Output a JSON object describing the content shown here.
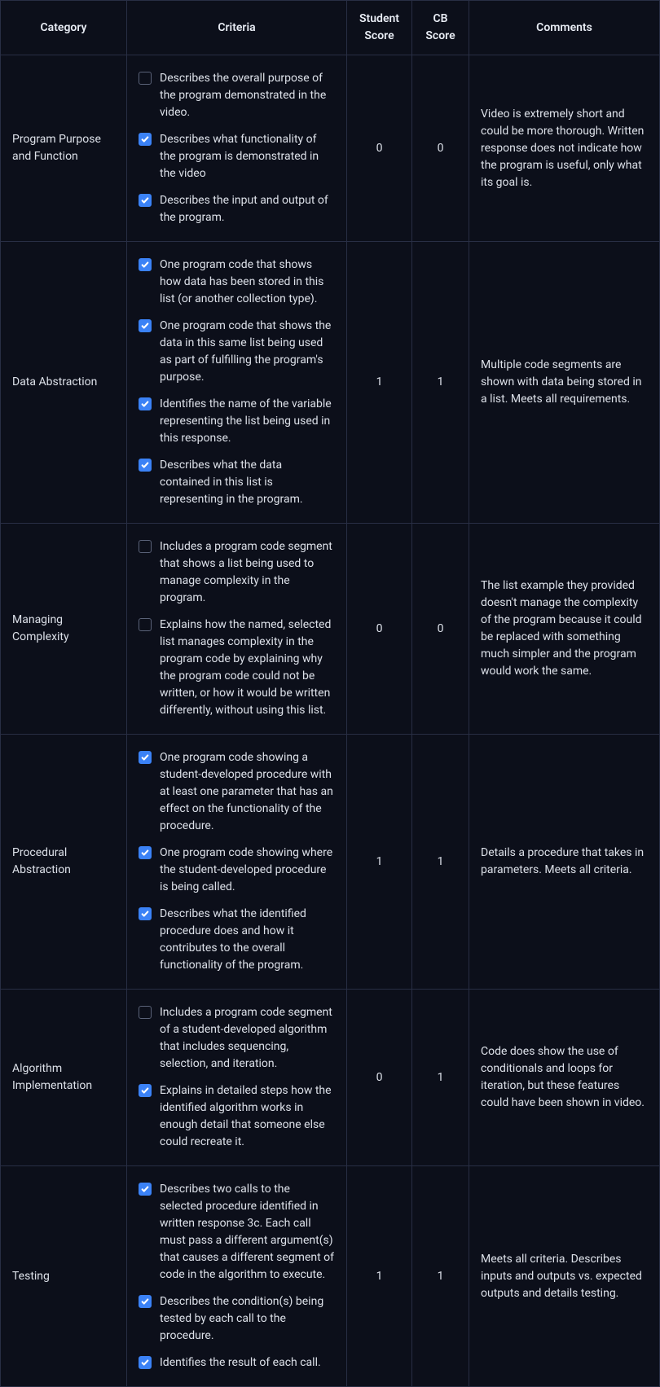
{
  "headers": {
    "category": "Category",
    "criteria": "Criteria",
    "student_score": "Student Score",
    "cb_score": "CB Score",
    "comments": "Comments"
  },
  "rows": [
    {
      "category": "Program Purpose and Function",
      "criteria": [
        {
          "checked": false,
          "text": "Describes the overall purpose of the program demonstrated in the video."
        },
        {
          "checked": true,
          "text": "Describes what functionality of the program is demonstrated in the video"
        },
        {
          "checked": true,
          "text": "Describes the input and output of the program."
        }
      ],
      "student_score": "0",
      "cb_score": "0",
      "comments": "Video is extremely short and could be more thorough. Written response does not indicate how the program is useful, only what its goal is."
    },
    {
      "category": "Data Abstraction",
      "criteria": [
        {
          "checked": true,
          "text": "One program code that shows how data has been stored in this list (or another collection type)."
        },
        {
          "checked": true,
          "text": "One program code that shows the data in this same list being used as part of fulfilling the program's purpose."
        },
        {
          "checked": true,
          "text": "Identifies the name of the variable representing the list being used in this response."
        },
        {
          "checked": true,
          "text": "Describes what the data contained in this list is representing in the program."
        }
      ],
      "student_score": "1",
      "cb_score": "1",
      "comments": "Multiple code segments are shown with data being stored in a list. Meets all requirements."
    },
    {
      "category": "Managing Complexity",
      "criteria": [
        {
          "checked": false,
          "text": "Includes a program code segment that shows a list being used to manage complexity in the program."
        },
        {
          "checked": false,
          "text": "Explains how the named, selected list manages complexity in the program code by explaining why the program code could not be written, or how it would be written differently, without using this list."
        }
      ],
      "student_score": "0",
      "cb_score": "0",
      "comments": "The list example they provided doesn't manage the complexity of the program because it could be replaced with something much simpler and the program would work the same."
    },
    {
      "category": "Procedural Abstraction",
      "criteria": [
        {
          "checked": true,
          "text": "One program code showing a student-developed procedure with at least one parameter that has an effect on the functionality of the procedure."
        },
        {
          "checked": true,
          "text": "One program code showing where the student-developed procedure is being called."
        },
        {
          "checked": true,
          "text": "Describes what the identified procedure does and how it contributes to the overall functionality of the program."
        }
      ],
      "student_score": "1",
      "cb_score": "1",
      "comments": "Details a procedure that takes in parameters. Meets all criteria."
    },
    {
      "category": "Algorithm Implementation",
      "criteria": [
        {
          "checked": false,
          "text": "Includes a program code segment of a student-developed algorithm that includes sequencing, selection, and iteration."
        },
        {
          "checked": true,
          "text": "Explains in detailed steps how the identified algorithm works in enough detail that someone else could recreate it."
        }
      ],
      "student_score": "0",
      "cb_score": "1",
      "comments": "Code does show the use of conditionals and loops for iteration, but these features could have been shown in video."
    },
    {
      "category": "Testing",
      "criteria": [
        {
          "checked": true,
          "text": "Describes two calls to the selected procedure identified in written response 3c. Each call must pass a different argument(s) that causes a different segment of code in the algorithm to execute."
        },
        {
          "checked": true,
          "text": "Describes the condition(s) being tested by each call to the procedure."
        },
        {
          "checked": true,
          "text": "Identifies the result of each call."
        }
      ],
      "student_score": "1",
      "cb_score": "1",
      "comments": "Meets all criteria. Describes inputs and outputs vs. expected outputs and details testing."
    }
  ]
}
